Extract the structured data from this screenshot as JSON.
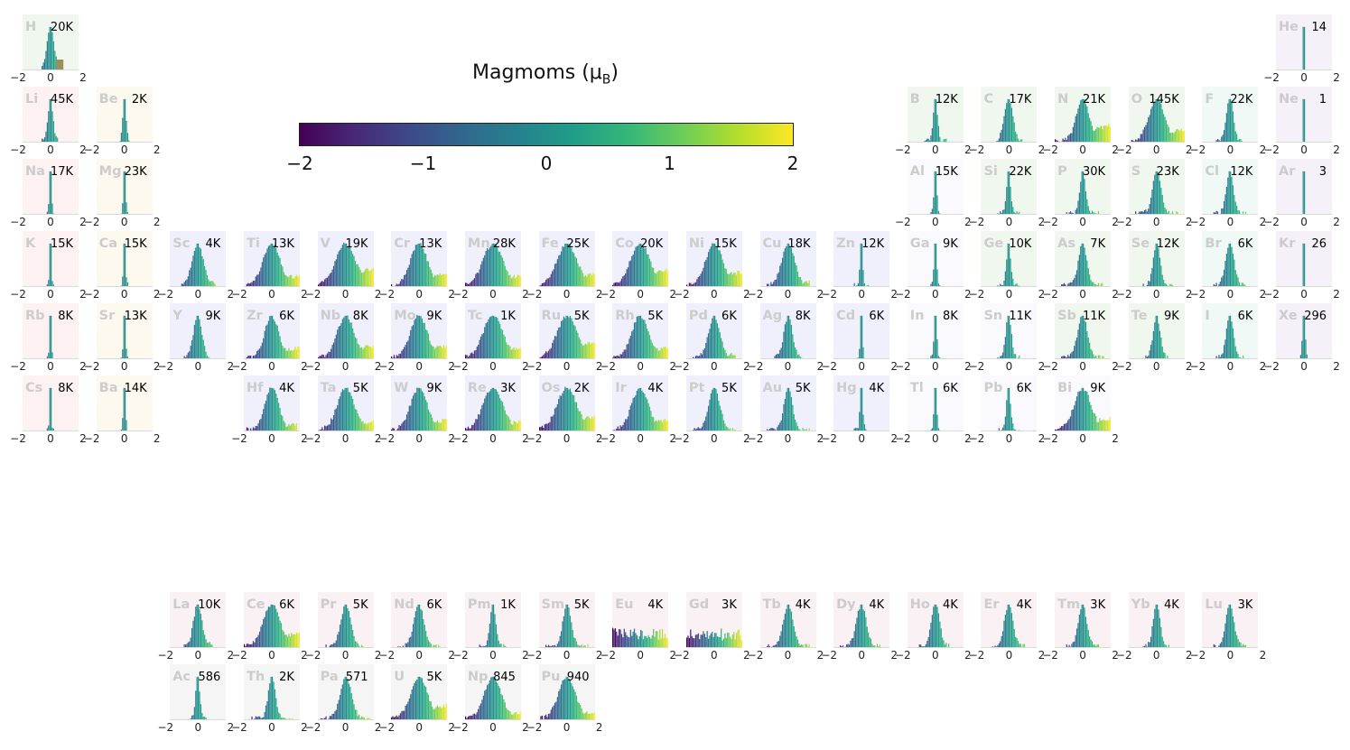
{
  "chart_data": {
    "type": "histogram-periodic-table",
    "colorbar": {
      "title_main": "Magmoms (μ",
      "title_sub": "B",
      "title_end": ")",
      "range": [
        -2,
        2
      ],
      "ticks": [
        "−2",
        "−1",
        "0",
        "1",
        "2"
      ],
      "colormap": "viridis"
    },
    "axis_ticks": [
      "−2",
      "0",
      "2"
    ],
    "x_range": [
      -2,
      2
    ],
    "category_colors": {
      "alkali": "#fdf1f1",
      "alkaline_earth": "#fef9ee",
      "transition": "#f0f0fc",
      "post_transition": "#fafafe",
      "metalloid": "#eff7ef",
      "nonmetal": "#eff7ef",
      "halogen": "#f0f9f6",
      "noble_gas": "#f6f1f8",
      "lanthanide": "#f9f1f4",
      "actinide": "#f5f5f5",
      "hydrogen": "#eff7ef"
    },
    "elements": [
      {
        "symbol": "H",
        "count": "20K",
        "row": 1,
        "col": 1,
        "category": "hydrogen",
        "spread": 0.6,
        "sigma": 0.25,
        "skew": 0,
        "alt": true
      },
      {
        "symbol": "He",
        "count": "14",
        "row": 1,
        "col": 18,
        "category": "noble_gas",
        "spread": 0.02,
        "sigma": 0.03,
        "skew": 0
      },
      {
        "symbol": "Li",
        "count": "45K",
        "row": 2,
        "col": 1,
        "category": "alkali",
        "spread": 0.6,
        "sigma": 0.18,
        "skew": 0
      },
      {
        "symbol": "Be",
        "count": "2K",
        "row": 2,
        "col": 2,
        "category": "alkaline_earth",
        "spread": 0.4,
        "sigma": 0.12,
        "skew": 0
      },
      {
        "symbol": "B",
        "count": "12K",
        "row": 2,
        "col": 13,
        "category": "metalloid",
        "spread": 0.8,
        "sigma": 0.15,
        "skew": 0
      },
      {
        "symbol": "C",
        "count": "17K",
        "row": 2,
        "col": 14,
        "category": "nonmetal",
        "spread": 1.0,
        "sigma": 0.3,
        "skew": 0
      },
      {
        "symbol": "N",
        "count": "21K",
        "row": 2,
        "col": 15,
        "category": "nonmetal",
        "spread": 2.0,
        "sigma": 0.45,
        "skew": 0.8
      },
      {
        "symbol": "O",
        "count": "145K",
        "row": 2,
        "col": 16,
        "category": "nonmetal",
        "spread": 2.0,
        "sigma": 0.55,
        "skew": 0.6
      },
      {
        "symbol": "F",
        "count": "22K",
        "row": 2,
        "col": 17,
        "category": "halogen",
        "spread": 1.0,
        "sigma": 0.25,
        "skew": 0
      },
      {
        "symbol": "Ne",
        "count": "1",
        "row": 2,
        "col": 18,
        "category": "noble_gas",
        "spread": 0.02,
        "sigma": 0.03,
        "skew": 0
      },
      {
        "symbol": "Na",
        "count": "17K",
        "row": 3,
        "col": 1,
        "category": "alkali",
        "spread": 0.3,
        "sigma": 0.08,
        "skew": 0
      },
      {
        "symbol": "Mg",
        "count": "23K",
        "row": 3,
        "col": 2,
        "category": "alkaline_earth",
        "spread": 0.3,
        "sigma": 0.08,
        "skew": 0
      },
      {
        "symbol": "Al",
        "count": "15K",
        "row": 3,
        "col": 13,
        "category": "post_transition",
        "spread": 0.4,
        "sigma": 0.1,
        "skew": 0
      },
      {
        "symbol": "Si",
        "count": "22K",
        "row": 3,
        "col": 14,
        "category": "metalloid",
        "spread": 0.8,
        "sigma": 0.15,
        "skew": 0
      },
      {
        "symbol": "P",
        "count": "30K",
        "row": 3,
        "col": 15,
        "category": "nonmetal",
        "spread": 1.2,
        "sigma": 0.2,
        "skew": 0
      },
      {
        "symbol": "S",
        "count": "23K",
        "row": 3,
        "col": 16,
        "category": "nonmetal",
        "spread": 1.5,
        "sigma": 0.3,
        "skew": 0
      },
      {
        "symbol": "Cl",
        "count": "12K",
        "row": 3,
        "col": 17,
        "category": "halogen",
        "spread": 1.2,
        "sigma": 0.25,
        "skew": 0
      },
      {
        "symbol": "Ar",
        "count": "3",
        "row": 3,
        "col": 18,
        "category": "noble_gas",
        "spread": 0.02,
        "sigma": 0.03,
        "skew": 0
      },
      {
        "symbol": "K",
        "count": "15K",
        "row": 4,
        "col": 1,
        "category": "alkali",
        "spread": 0.3,
        "sigma": 0.06,
        "skew": 0
      },
      {
        "symbol": "Ca",
        "count": "15K",
        "row": 4,
        "col": 2,
        "category": "alkaline_earth",
        "spread": 0.3,
        "sigma": 0.08,
        "skew": 0
      },
      {
        "symbol": "Sc",
        "count": "4K",
        "row": 4,
        "col": 3,
        "category": "transition",
        "spread": 1.2,
        "sigma": 0.4,
        "skew": 0.2
      },
      {
        "symbol": "Ti",
        "count": "13K",
        "row": 4,
        "col": 4,
        "category": "transition",
        "spread": 2.0,
        "sigma": 0.6,
        "skew": 0.5
      },
      {
        "symbol": "V",
        "count": "19K",
        "row": 4,
        "col": 5,
        "category": "transition",
        "spread": 2.0,
        "sigma": 0.7,
        "skew": 0.9
      },
      {
        "symbol": "Cr",
        "count": "13K",
        "row": 4,
        "col": 6,
        "category": "transition",
        "spread": 2.0,
        "sigma": 0.6,
        "skew": 0.6
      },
      {
        "symbol": "Mn",
        "count": "28K",
        "row": 4,
        "col": 7,
        "category": "transition",
        "spread": 2.0,
        "sigma": 0.7,
        "skew": 0.5
      },
      {
        "symbol": "Fe",
        "count": "25K",
        "row": 4,
        "col": 8,
        "category": "transition",
        "spread": 2.0,
        "sigma": 0.7,
        "skew": 0.6
      },
      {
        "symbol": "Co",
        "count": "20K",
        "row": 4,
        "col": 9,
        "category": "transition",
        "spread": 2.0,
        "sigma": 0.7,
        "skew": 0.8
      },
      {
        "symbol": "Ni",
        "count": "15K",
        "row": 4,
        "col": 10,
        "category": "transition",
        "spread": 2.0,
        "sigma": 0.6,
        "skew": 0.7
      },
      {
        "symbol": "Cu",
        "count": "18K",
        "row": 4,
        "col": 11,
        "category": "transition",
        "spread": 1.5,
        "sigma": 0.45,
        "skew": 0.2
      },
      {
        "symbol": "Zn",
        "count": "12K",
        "row": 4,
        "col": 12,
        "category": "transition",
        "spread": 0.5,
        "sigma": 0.1,
        "skew": 0
      },
      {
        "symbol": "Ga",
        "count": "9K",
        "row": 4,
        "col": 13,
        "category": "post_transition",
        "spread": 0.4,
        "sigma": 0.1,
        "skew": 0
      },
      {
        "symbol": "Ge",
        "count": "10K",
        "row": 4,
        "col": 14,
        "category": "metalloid",
        "spread": 0.8,
        "sigma": 0.15,
        "skew": 0
      },
      {
        "symbol": "As",
        "count": "7K",
        "row": 4,
        "col": 15,
        "category": "metalloid",
        "spread": 1.5,
        "sigma": 0.3,
        "skew": 0
      },
      {
        "symbol": "Se",
        "count": "12K",
        "row": 4,
        "col": 16,
        "category": "nonmetal",
        "spread": 1.2,
        "sigma": 0.25,
        "skew": 0
      },
      {
        "symbol": "Br",
        "count": "6K",
        "row": 4,
        "col": 17,
        "category": "halogen",
        "spread": 1.2,
        "sigma": 0.3,
        "skew": 0
      },
      {
        "symbol": "Kr",
        "count": "26",
        "row": 4,
        "col": 18,
        "category": "noble_gas",
        "spread": 0.02,
        "sigma": 0.03,
        "skew": 0
      },
      {
        "symbol": "Rb",
        "count": "8K",
        "row": 5,
        "col": 1,
        "category": "alkali",
        "spread": 0.3,
        "sigma": 0.06,
        "skew": 0
      },
      {
        "symbol": "Sr",
        "count": "13K",
        "row": 5,
        "col": 2,
        "category": "alkaline_earth",
        "spread": 0.3,
        "sigma": 0.08,
        "skew": 0
      },
      {
        "symbol": "Y",
        "count": "9K",
        "row": 5,
        "col": 3,
        "category": "transition",
        "spread": 1.0,
        "sigma": 0.3,
        "skew": 0
      },
      {
        "symbol": "Zr",
        "count": "6K",
        "row": 5,
        "col": 4,
        "category": "transition",
        "spread": 2.0,
        "sigma": 0.5,
        "skew": 0.5
      },
      {
        "symbol": "Nb",
        "count": "8K",
        "row": 5,
        "col": 5,
        "category": "transition",
        "spread": 2.0,
        "sigma": 0.6,
        "skew": 0.6
      },
      {
        "symbol": "Mo",
        "count": "9K",
        "row": 5,
        "col": 6,
        "category": "transition",
        "spread": 2.0,
        "sigma": 0.6,
        "skew": 0.6
      },
      {
        "symbol": "Tc",
        "count": "1K",
        "row": 5,
        "col": 7,
        "category": "transition",
        "spread": 2.0,
        "sigma": 0.7,
        "skew": 0.5
      },
      {
        "symbol": "Ru",
        "count": "5K",
        "row": 5,
        "col": 8,
        "category": "transition",
        "spread": 2.0,
        "sigma": 0.7,
        "skew": 0.8
      },
      {
        "symbol": "Rh",
        "count": "5K",
        "row": 5,
        "col": 9,
        "category": "transition",
        "spread": 2.0,
        "sigma": 0.6,
        "skew": 0.5
      },
      {
        "symbol": "Pd",
        "count": "6K",
        "row": 5,
        "col": 10,
        "category": "transition",
        "spread": 1.5,
        "sigma": 0.4,
        "skew": 0.2
      },
      {
        "symbol": "Ag",
        "count": "8K",
        "row": 5,
        "col": 11,
        "category": "transition",
        "spread": 1.0,
        "sigma": 0.3,
        "skew": 0
      },
      {
        "symbol": "Cd",
        "count": "6K",
        "row": 5,
        "col": 12,
        "category": "transition",
        "spread": 0.4,
        "sigma": 0.08,
        "skew": 0
      },
      {
        "symbol": "In",
        "count": "8K",
        "row": 5,
        "col": 13,
        "category": "post_transition",
        "spread": 0.4,
        "sigma": 0.1,
        "skew": 0
      },
      {
        "symbol": "Sn",
        "count": "11K",
        "row": 5,
        "col": 14,
        "category": "post_transition",
        "spread": 0.8,
        "sigma": 0.2,
        "skew": 0
      },
      {
        "symbol": "Sb",
        "count": "11K",
        "row": 5,
        "col": 15,
        "category": "metalloid",
        "spread": 1.5,
        "sigma": 0.35,
        "skew": 0
      },
      {
        "symbol": "Te",
        "count": "9K",
        "row": 5,
        "col": 16,
        "category": "metalloid",
        "spread": 1.0,
        "sigma": 0.25,
        "skew": 0
      },
      {
        "symbol": "I",
        "count": "6K",
        "row": 5,
        "col": 17,
        "category": "halogen",
        "spread": 1.0,
        "sigma": 0.25,
        "skew": 0
      },
      {
        "symbol": "Xe",
        "count": "296",
        "row": 5,
        "col": 18,
        "category": "noble_gas",
        "spread": 0.3,
        "sigma": 0.1,
        "skew": 0
      },
      {
        "symbol": "Cs",
        "count": "8K",
        "row": 6,
        "col": 1,
        "category": "alkali",
        "spread": 0.3,
        "sigma": 0.06,
        "skew": 0
      },
      {
        "symbol": "Ba",
        "count": "14K",
        "row": 6,
        "col": 2,
        "category": "alkaline_earth",
        "spread": 0.3,
        "sigma": 0.08,
        "skew": 0
      },
      {
        "symbol": "Hf",
        "count": "4K",
        "row": 6,
        "col": 4,
        "category": "transition",
        "spread": 1.8,
        "sigma": 0.5,
        "skew": 0.3
      },
      {
        "symbol": "Ta",
        "count": "5K",
        "row": 6,
        "col": 5,
        "category": "transition",
        "spread": 2.0,
        "sigma": 0.6,
        "skew": 0.4
      },
      {
        "symbol": "W",
        "count": "9K",
        "row": 6,
        "col": 6,
        "category": "transition",
        "spread": 2.0,
        "sigma": 0.6,
        "skew": 0.5
      },
      {
        "symbol": "Re",
        "count": "3K",
        "row": 6,
        "col": 7,
        "category": "transition",
        "spread": 2.0,
        "sigma": 0.7,
        "skew": 0.4
      },
      {
        "symbol": "Os",
        "count": "2K",
        "row": 6,
        "col": 8,
        "category": "transition",
        "spread": 2.0,
        "sigma": 0.7,
        "skew": 0.7
      },
      {
        "symbol": "Ir",
        "count": "4K",
        "row": 6,
        "col": 9,
        "category": "transition",
        "spread": 2.0,
        "sigma": 0.6,
        "skew": 0.5
      },
      {
        "symbol": "Pt",
        "count": "5K",
        "row": 6,
        "col": 10,
        "category": "transition",
        "spread": 1.5,
        "sigma": 0.4,
        "skew": 0
      },
      {
        "symbol": "Au",
        "count": "5K",
        "row": 6,
        "col": 11,
        "category": "transition",
        "spread": 1.5,
        "sigma": 0.3,
        "skew": 0
      },
      {
        "symbol": "Hg",
        "count": "4K",
        "row": 6,
        "col": 12,
        "category": "transition",
        "spread": 0.5,
        "sigma": 0.1,
        "skew": 0
      },
      {
        "symbol": "Tl",
        "count": "6K",
        "row": 6,
        "col": 13,
        "category": "post_transition",
        "spread": 0.4,
        "sigma": 0.1,
        "skew": 0
      },
      {
        "symbol": "Pb",
        "count": "6K",
        "row": 6,
        "col": 14,
        "category": "post_transition",
        "spread": 0.8,
        "sigma": 0.15,
        "skew": 0
      },
      {
        "symbol": "Bi",
        "count": "9K",
        "row": 6,
        "col": 15,
        "category": "post_transition",
        "spread": 2.0,
        "sigma": 0.6,
        "skew": 0.6
      },
      {
        "symbol": "La",
        "count": "10K",
        "row": 8,
        "col": 3,
        "category": "lanthanide",
        "spread": 1.0,
        "sigma": 0.3,
        "skew": 0.2
      },
      {
        "symbol": "Ce",
        "count": "6K",
        "row": 8,
        "col": 4,
        "category": "lanthanide",
        "spread": 2.0,
        "sigma": 0.6,
        "skew": 0.7
      },
      {
        "symbol": "Pr",
        "count": "5K",
        "row": 8,
        "col": 5,
        "category": "lanthanide",
        "spread": 1.5,
        "sigma": 0.35,
        "skew": 0
      },
      {
        "symbol": "Nd",
        "count": "6K",
        "row": 8,
        "col": 6,
        "category": "lanthanide",
        "spread": 1.5,
        "sigma": 0.35,
        "skew": 0
      },
      {
        "symbol": "Pm",
        "count": "1K",
        "row": 8,
        "col": 7,
        "category": "lanthanide",
        "spread": 1.0,
        "sigma": 0.2,
        "skew": 0
      },
      {
        "symbol": "Sm",
        "count": "5K",
        "row": 8,
        "col": 8,
        "category": "lanthanide",
        "spread": 1.5,
        "sigma": 0.3,
        "skew": 0
      },
      {
        "symbol": "Eu",
        "count": "4K",
        "row": 8,
        "col": 9,
        "category": "lanthanide",
        "spread": 2.0,
        "sigma": 1.5,
        "skew": 0,
        "flat": true
      },
      {
        "symbol": "Gd",
        "count": "3K",
        "row": 8,
        "col": 10,
        "category": "lanthanide",
        "spread": 2.0,
        "sigma": 1.5,
        "skew": 0,
        "flat": true
      },
      {
        "symbol": "Tb",
        "count": "4K",
        "row": 8,
        "col": 11,
        "category": "lanthanide",
        "spread": 1.5,
        "sigma": 0.35,
        "skew": 0
      },
      {
        "symbol": "Dy",
        "count": "4K",
        "row": 8,
        "col": 12,
        "category": "lanthanide",
        "spread": 1.5,
        "sigma": 0.35,
        "skew": 0
      },
      {
        "symbol": "Ho",
        "count": "4K",
        "row": 8,
        "col": 13,
        "category": "lanthanide",
        "spread": 1.2,
        "sigma": 0.3,
        "skew": 0
      },
      {
        "symbol": "Er",
        "count": "4K",
        "row": 8,
        "col": 14,
        "category": "lanthanide",
        "spread": 1.2,
        "sigma": 0.3,
        "skew": 0
      },
      {
        "symbol": "Tm",
        "count": "3K",
        "row": 8,
        "col": 15,
        "category": "lanthanide",
        "spread": 1.2,
        "sigma": 0.3,
        "skew": 0
      },
      {
        "symbol": "Yb",
        "count": "4K",
        "row": 8,
        "col": 16,
        "category": "lanthanide",
        "spread": 1.0,
        "sigma": 0.25,
        "skew": 0
      },
      {
        "symbol": "Lu",
        "count": "3K",
        "row": 8,
        "col": 17,
        "category": "lanthanide",
        "spread": 1.2,
        "sigma": 0.3,
        "skew": 0
      },
      {
        "symbol": "Ac",
        "count": "586",
        "row": 9,
        "col": 3,
        "category": "actinide",
        "spread": 0.6,
        "sigma": 0.15,
        "skew": 0
      },
      {
        "symbol": "Th",
        "count": "2K",
        "row": 9,
        "col": 4,
        "category": "actinide",
        "spread": 1.5,
        "sigma": 0.25,
        "skew": 0
      },
      {
        "symbol": "Pa",
        "count": "571",
        "row": 9,
        "col": 5,
        "category": "actinide",
        "spread": 1.8,
        "sigma": 0.4,
        "skew": 0
      },
      {
        "symbol": "U",
        "count": "5K",
        "row": 9,
        "col": 6,
        "category": "actinide",
        "spread": 2.0,
        "sigma": 0.6,
        "skew": 0.7
      },
      {
        "symbol": "Np",
        "count": "845",
        "row": 9,
        "col": 7,
        "category": "actinide",
        "spread": 2.0,
        "sigma": 0.6,
        "skew": 0.3
      },
      {
        "symbol": "Pu",
        "count": "940",
        "row": 9,
        "col": 8,
        "category": "actinide",
        "spread": 2.0,
        "sigma": 0.6,
        "skew": 0.3
      }
    ]
  }
}
